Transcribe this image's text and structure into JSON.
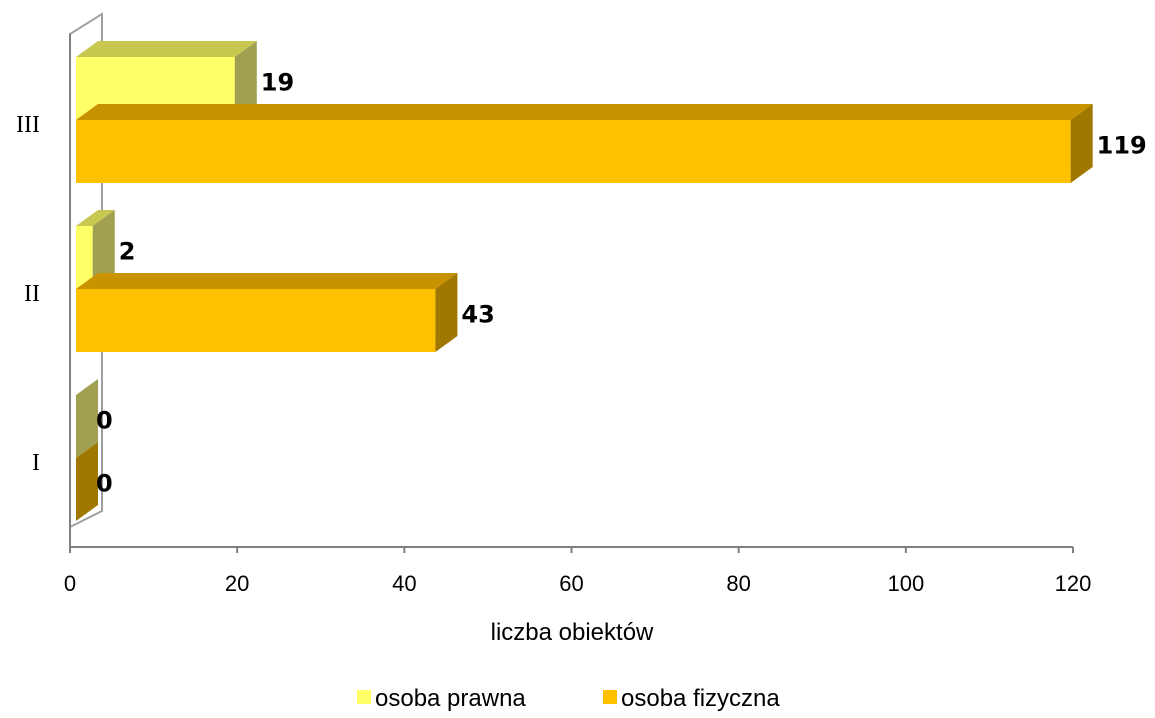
{
  "chart_data": {
    "type": "bar",
    "orientation": "horizontal",
    "three_d": true,
    "categories": [
      "I",
      "II",
      "III"
    ],
    "series": [
      {
        "name": "osoba prawna",
        "values": [
          0,
          2,
          19
        ],
        "color": "#FFFF66"
      },
      {
        "name": "osoba fizyczna",
        "values": [
          0,
          43,
          119
        ],
        "color": "#FFC000"
      }
    ],
    "xlabel": "liczba obiektów",
    "ylabel": "",
    "title": "",
    "xlim": [
      0,
      120
    ],
    "xticks": [
      "0",
      "20",
      "40",
      "60",
      "80",
      "100",
      "120"
    ],
    "grid": false,
    "legend_position": "bottom"
  }
}
